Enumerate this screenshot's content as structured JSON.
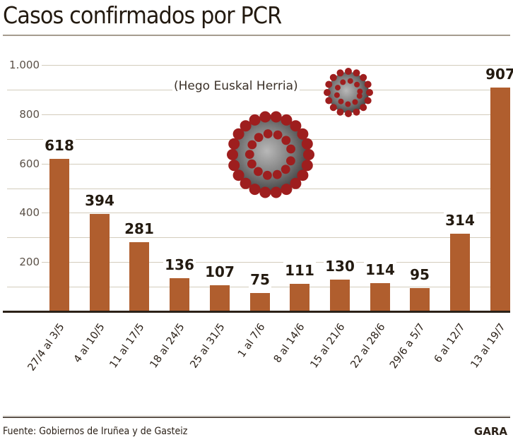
{
  "header": {
    "title": "Casos confirmados por PCR",
    "subtitle": "(Hego Euskal Herria)"
  },
  "footer": {
    "source": "Fuente: Gobiernos de Iruñea y de Gasteiz",
    "brand": "GARA"
  },
  "colors": {
    "bar": "#b05e2e",
    "grid": "#d3ccbc",
    "text": "#231a10",
    "virus_spike": "#9e1e1e",
    "virus_body": "#7a7a7a"
  },
  "axis": {
    "yticks": [
      {
        "value": 1000,
        "label": "1.000"
      },
      {
        "value": 800,
        "label": "800"
      },
      {
        "value": 600,
        "label": "600"
      },
      {
        "value": 400,
        "label": "400"
      },
      {
        "value": 200,
        "label": "200"
      }
    ]
  },
  "chart_data": {
    "type": "bar",
    "title": "Casos confirmados por PCR",
    "subtitle": "(Hego Euskal Herria)",
    "xlabel": "",
    "ylabel": "",
    "ylim": [
      0,
      1000
    ],
    "grid": true,
    "grid_step": 100,
    "legend": null,
    "categories": [
      "27/4 al 3/5",
      "4 al 10/5",
      "11 al 17/5",
      "18 al 24/5",
      "25 al 31/5",
      "1 al 7/6",
      "8 al 14/6",
      "15 al 21/6",
      "22 al 28/6",
      "29/6 a 5/7",
      "6 al 12/7",
      "13 al 19/7"
    ],
    "values": [
      618,
      394,
      281,
      136,
      107,
      75,
      111,
      130,
      114,
      95,
      314,
      907
    ],
    "source": "Fuente: Gobiernos de Iruñea y de Gasteiz"
  }
}
